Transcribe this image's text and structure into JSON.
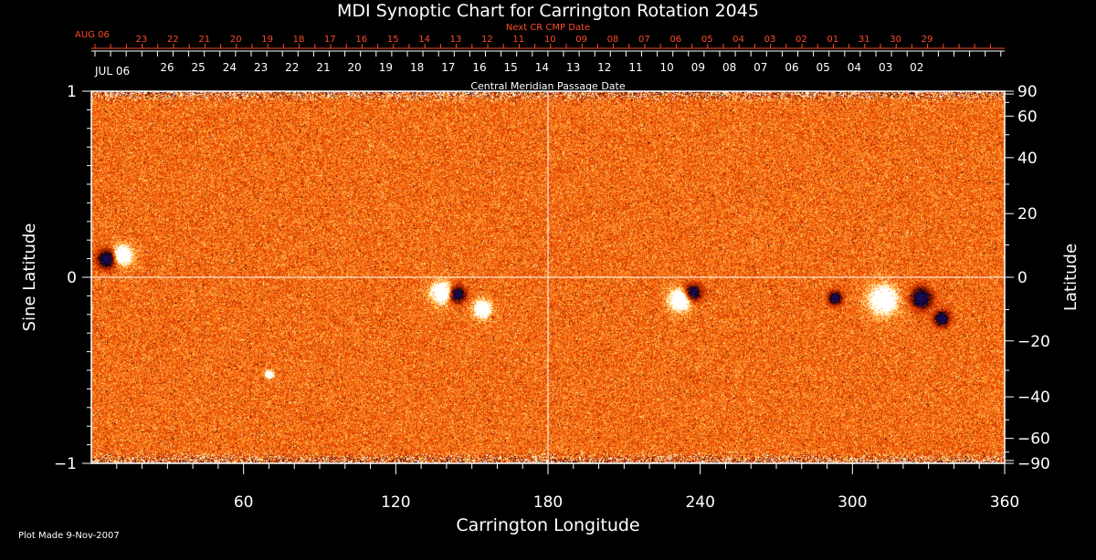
{
  "chart_data": {
    "type": "heatmap",
    "title": "MDI Synoptic Chart for Carrington Rotation 2045",
    "xlabel": "Carrington Longitude",
    "ylabel_left": "Sine Latitude",
    "ylabel_right": "Latitude",
    "xlim": [
      0,
      360
    ],
    "ylim": [
      -1,
      1
    ],
    "x_ticks": [
      60,
      120,
      180,
      240,
      300,
      360
    ],
    "y_ticks_left": [
      1,
      0,
      -1
    ],
    "y_tick_labels_left": [
      "1",
      "0",
      "−1"
    ],
    "y_ticks_right": [
      90,
      60,
      40,
      20,
      0,
      -20,
      -40,
      -60,
      -90
    ],
    "y_tick_labels_right": [
      "90",
      "60",
      "40",
      "20",
      "0",
      "−20",
      "−40",
      "−60",
      "−90"
    ],
    "grid": "cross at longitude 180 and sine latitude 0",
    "colormap": [
      "#1a0a50",
      "#000000",
      "#8a1800",
      "#d83a00",
      "#ff6a0a",
      "#ffb040",
      "#fff0a0",
      "#ffffff"
    ],
    "features": [
      {
        "lon": 6,
        "sinlat": 0.1,
        "polarity": "negative",
        "size": 1.0
      },
      {
        "lon": 12,
        "sinlat": 0.12,
        "polarity": "positive",
        "size": 0.9
      },
      {
        "lon": 138,
        "sinlat": -0.08,
        "polarity": "positive",
        "size": 1.0
      },
      {
        "lon": 144,
        "sinlat": -0.09,
        "polarity": "negative",
        "size": 0.9
      },
      {
        "lon": 154,
        "sinlat": -0.17,
        "polarity": "positive",
        "size": 0.8
      },
      {
        "lon": 232,
        "sinlat": -0.12,
        "polarity": "positive",
        "size": 1.0
      },
      {
        "lon": 237,
        "sinlat": -0.08,
        "polarity": "negative",
        "size": 0.9
      },
      {
        "lon": 293,
        "sinlat": -0.11,
        "polarity": "negative",
        "size": 0.7
      },
      {
        "lon": 312,
        "sinlat": -0.12,
        "polarity": "positive",
        "size": 1.3
      },
      {
        "lon": 327,
        "sinlat": -0.11,
        "polarity": "negative",
        "size": 1.1
      },
      {
        "lon": 335,
        "sinlat": -0.22,
        "polarity": "negative",
        "size": 0.8
      },
      {
        "lon": 70,
        "sinlat": -0.52,
        "polarity": "positive",
        "size": 0.4
      }
    ]
  },
  "next_cr_axis": {
    "label": "Next CR CMP Date",
    "month_label": "AUG 06",
    "ticks": [
      "23",
      "22",
      "21",
      "20",
      "19",
      "18",
      "17",
      "16",
      "15",
      "14",
      "13",
      "12",
      "11",
      "10",
      "09",
      "08",
      "07",
      "06",
      "05",
      "04",
      "03",
      "02",
      "01",
      "31",
      "30",
      "29"
    ],
    "color": "#ff4a2a"
  },
  "cmp_axis": {
    "label": "Central Meridian Passage Date",
    "month_label": "JUL 06",
    "ticks": [
      "26",
      "25",
      "24",
      "23",
      "22",
      "21",
      "20",
      "19",
      "18",
      "17",
      "16",
      "15",
      "14",
      "13",
      "12",
      "11",
      "10",
      "09",
      "08",
      "07",
      "06",
      "05",
      "04",
      "03",
      "02"
    ]
  },
  "footer": {
    "plot_made": "Plot Made  9-Nov-2007"
  }
}
